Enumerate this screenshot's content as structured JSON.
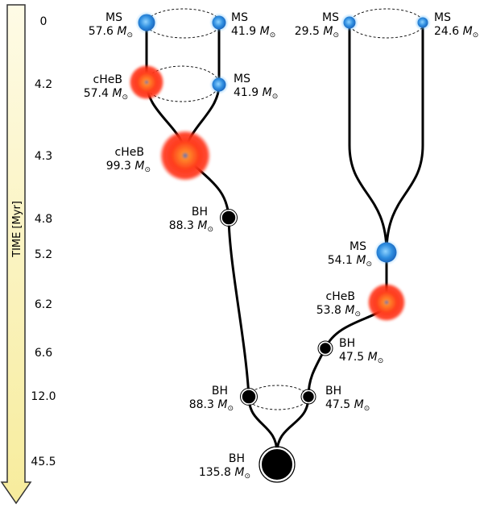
{
  "time_axis": {
    "label": "TIME [Myr]",
    "ticks": [
      "0",
      "4.2",
      "4.3",
      "4.8",
      "5.2",
      "6.2",
      "6.6",
      "12.0",
      "45.5"
    ]
  },
  "stars": [
    {
      "id": "s1",
      "type": "MS",
      "mass": "57.6",
      "color": "#2f8ee0"
    },
    {
      "id": "s2",
      "type": "MS",
      "mass": "41.9",
      "color": "#2f8ee0"
    },
    {
      "id": "s3",
      "type": "MS",
      "mass": "29.5",
      "color": "#2f8ee0"
    },
    {
      "id": "s4",
      "type": "MS",
      "mass": "24.6",
      "color": "#2f8ee0"
    },
    {
      "id": "s5",
      "type": "cHeB",
      "mass": "57.4",
      "color": "#ff3b1c"
    },
    {
      "id": "s6",
      "type": "MS",
      "mass": "41.9",
      "color": "#2f8ee0"
    },
    {
      "id": "s7",
      "type": "cHeB",
      "mass": "99.3",
      "color": "#ff3b1c"
    },
    {
      "id": "s8",
      "type": "BH",
      "mass": "88.3",
      "color": "#000000"
    },
    {
      "id": "s9",
      "type": "MS",
      "mass": "54.1",
      "color": "#2f8ee0"
    },
    {
      "id": "s10",
      "type": "cHeB",
      "mass": "53.8",
      "color": "#ff3b1c"
    },
    {
      "id": "s11",
      "type": "BH",
      "mass": "47.5",
      "color": "#000000"
    },
    {
      "id": "s12",
      "type": "BH",
      "mass": "88.3",
      "color": "#000000"
    },
    {
      "id": "s13",
      "type": "BH",
      "mass": "47.5",
      "color": "#000000"
    },
    {
      "id": "s14",
      "type": "BH",
      "mass": "135.8",
      "color": "#000000"
    }
  ],
  "mass_unit": {
    "symbol": "M",
    "subscript": "⊙"
  }
}
